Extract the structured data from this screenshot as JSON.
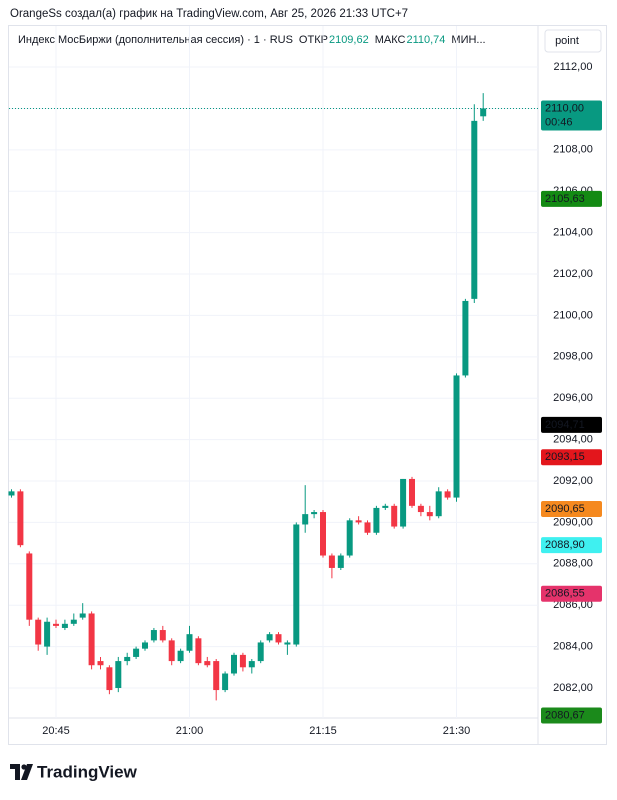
{
  "header": {
    "text": "OrangeSs создал(а) график на TradingView.com, Авг 25, 2026 21:33 UTC+7"
  },
  "footer": {
    "brand": "TradingView"
  },
  "chart_data": {
    "type": "candlestick",
    "legend": {
      "symbol": "Индекс МосБиржи (дополнительная сессия) · 1 · RUS",
      "items": [
        {
          "label": "ОТКР",
          "value": "2109,62"
        },
        {
          "label": "МАКС",
          "value": "2110,74"
        },
        {
          "label": "МИН..."
        }
      ]
    },
    "scale_button": "point",
    "categories": [
      null,
      null,
      null,
      null,
      null,
      "20:45",
      null,
      null,
      null,
      null,
      null,
      null,
      null,
      null,
      null,
      null,
      null,
      null,
      null,
      null,
      "21:00",
      null,
      null,
      null,
      null,
      null,
      null,
      null,
      null,
      null,
      null,
      null,
      null,
      null,
      null,
      "21:15",
      null,
      null,
      null,
      null,
      null,
      null,
      null,
      null,
      null,
      null,
      null,
      null,
      null,
      null,
      "21:30",
      null,
      null,
      null
    ],
    "open": [
      2091.3,
      2091.5,
      2088.5,
      2085.3,
      2084.0,
      2085.1,
      2084.9,
      2085.1,
      2085.4,
      2085.6,
      2083.3,
      2083.0,
      2082.0,
      2083.3,
      2083.5,
      2083.9,
      2084.3,
      2084.8,
      2084.3,
      2083.3,
      2083.8,
      2084.4,
      2083.3,
      2083.3,
      2081.9,
      2082.7,
      2083.6,
      2083.0,
      2083.3,
      2084.3,
      2084.6,
      2084.1,
      2084.1,
      2089.9,
      2090.4,
      2090.5,
      2088.4,
      2087.8,
      2088.4,
      2090.1,
      2090.0,
      2089.5,
      2090.7,
      2090.8,
      2089.8,
      2092.1,
      2090.8,
      2090.5,
      2090.3,
      2091.5,
      2091.2,
      2097.1,
      2100.8,
      2109.62
    ],
    "high": [
      2091.6,
      2091.6,
      2088.6,
      2085.4,
      2085.4,
      2085.3,
      2085.3,
      2085.6,
      2086.1,
      2085.7,
      2083.5,
      2083.1,
      2083.5,
      2083.7,
      2084.0,
      2084.3,
      2084.9,
      2085.0,
      2084.4,
      2083.9,
      2085.0,
      2084.5,
      2083.5,
      2083.4,
      2082.8,
      2083.7,
      2083.7,
      2083.4,
      2084.3,
      2084.7,
      2084.7,
      2084.3,
      2090.0,
      2091.8,
      2090.6,
      2090.6,
      2088.5,
      2088.5,
      2090.2,
      2090.3,
      2090.1,
      2090.8,
      2090.9,
      2090.9,
      2092.1,
      2092.2,
      2090.9,
      2090.8,
      2091.7,
      2091.6,
      2097.2,
      2100.8,
      2110.2,
      2110.74
    ],
    "low": [
      2091.2,
      2088.8,
      2085.0,
      2083.8,
      2083.6,
      2084.9,
      2084.8,
      2085.0,
      2085.3,
      2082.9,
      2082.9,
      2081.7,
      2081.8,
      2083.1,
      2083.4,
      2083.8,
      2084.2,
      2084.2,
      2083.1,
      2083.2,
      2083.7,
      2083.1,
      2083.0,
      2081.4,
      2081.8,
      2082.6,
      2082.8,
      2082.7,
      2083.2,
      2084.2,
      2084.1,
      2083.6,
      2084.0,
      2089.5,
      2090.2,
      2088.3,
      2087.3,
      2087.7,
      2088.3,
      2089.9,
      2089.4,
      2089.4,
      2090.6,
      2089.7,
      2089.7,
      2090.7,
      2090.3,
      2090.1,
      2090.2,
      2091.1,
      2091.0,
      2097.0,
      2100.6,
      2109.4
    ],
    "close": [
      2091.5,
      2088.9,
      2085.3,
      2084.1,
      2085.2,
      2085.0,
      2085.1,
      2085.3,
      2085.6,
      2083.1,
      2083.1,
      2081.9,
      2083.3,
      2083.5,
      2083.9,
      2084.2,
      2084.8,
      2084.3,
      2083.3,
      2083.8,
      2084.6,
      2083.2,
      2083.1,
      2081.9,
      2082.7,
      2083.6,
      2083.0,
      2083.3,
      2084.2,
      2084.6,
      2084.2,
      2084.2,
      2089.9,
      2090.4,
      2090.5,
      2088.4,
      2087.8,
      2088.4,
      2090.1,
      2090.0,
      2089.5,
      2090.7,
      2090.8,
      2089.8,
      2092.1,
      2090.8,
      2090.5,
      2090.3,
      2091.5,
      2091.2,
      2097.1,
      2100.7,
      2109.4,
      2110.0
    ],
    "up_color": "#089981",
    "down_color": "#f23645",
    "ylim": [
      2080.55,
      2113.79
    ],
    "yticks": [
      {
        "value": 2082,
        "label": "2082,00"
      },
      {
        "value": 2084,
        "label": "2084,00"
      },
      {
        "value": 2086,
        "label": "2086,00"
      },
      {
        "value": 2088,
        "label": "2088,00"
      },
      {
        "value": 2090,
        "label": "2090,00"
      },
      {
        "value": 2092,
        "label": "2092,00"
      },
      {
        "value": 2094,
        "label": "2094,00"
      },
      {
        "value": 2096,
        "label": "2096,00"
      },
      {
        "value": 2098,
        "label": "2098,00"
      },
      {
        "value": 2100,
        "label": "2100,00"
      },
      {
        "value": 2102,
        "label": "2102,00"
      },
      {
        "value": 2104,
        "label": "2104,00"
      },
      {
        "value": 2106,
        "label": "2106,00"
      },
      {
        "value": 2108,
        "label": "2108,00"
      },
      {
        "value": 2110,
        "label": "2110,00"
      },
      {
        "value": 2112,
        "label": "2112,00"
      }
    ],
    "grid": true,
    "price_labels": [
      {
        "value": 2110,
        "label": "2110,00",
        "sub": "00:46",
        "color": "#089981",
        "text_color": "#ffffff",
        "line": true
      },
      {
        "value": 2105.63,
        "label": "2105,63",
        "color": "#138a13",
        "text_color": "#ffffff"
      },
      {
        "value": 2094.71,
        "label": "2094,71",
        "color": "#000000",
        "text_color": "#ffffff"
      },
      {
        "value": 2093.15,
        "label": "2093,15",
        "color": "#e3161c",
        "text_color": "#ffffff"
      },
      {
        "value": 2090.65,
        "label": "2090,65",
        "color": "#f5891f",
        "text_color": "#ffffff"
      },
      {
        "value": 2088.9,
        "label": "2088,90",
        "color": "#3ff0f0",
        "text_color": "#131722"
      },
      {
        "value": 2086.55,
        "label": "2086,55",
        "color": "#e5336b",
        "text_color": "#ffffff"
      },
      {
        "value": 2080.67,
        "label": "2080,67",
        "color": "#1b8a1b",
        "text_color": "#ffffff"
      }
    ]
  }
}
